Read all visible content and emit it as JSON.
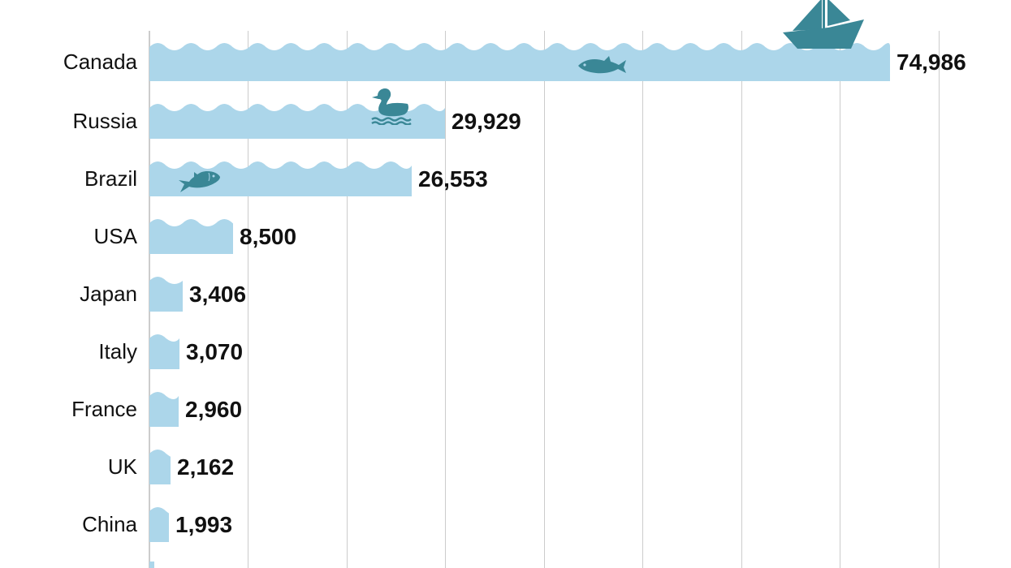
{
  "chart_data": {
    "type": "bar",
    "orientation": "horizontal",
    "title": "",
    "xlabel": "",
    "ylabel": "",
    "categories": [
      "Canada",
      "Russia",
      "Brazil",
      "USA",
      "Japan",
      "Italy",
      "France",
      "UK",
      "China"
    ],
    "values": [
      74986,
      29929,
      26553,
      8500,
      3406,
      3070,
      2960,
      2162,
      1993
    ],
    "value_labels": [
      "74,986",
      "29,929",
      "26,553",
      "8,500",
      "3,406",
      "3,070",
      "2,960",
      "2,162",
      "1,993"
    ],
    "xlim": [
      0,
      80000
    ],
    "grid": true,
    "grid_interval": 10000,
    "legend": "none",
    "decorations": [
      "sailboat on Canada bar",
      "fish in Canada bar",
      "duck on Russia bar",
      "fish in Brazil bar"
    ]
  },
  "colors": {
    "bar": "#acd6ea",
    "icon": "#3a8796",
    "grid": "#cccccc",
    "text": "#111111"
  },
  "rows": [
    {
      "label": "Canada",
      "value": "74,986"
    },
    {
      "label": "Russia",
      "value": "29,929"
    },
    {
      "label": "Brazil",
      "value": "26,553"
    },
    {
      "label": "USA",
      "value": "8,500"
    },
    {
      "label": "Japan",
      "value": "3,406"
    },
    {
      "label": "Italy",
      "value": "3,070"
    },
    {
      "label": "France",
      "value": "2,960"
    },
    {
      "label": "UK",
      "value": "2,162"
    },
    {
      "label": "China",
      "value": "1,993"
    }
  ]
}
